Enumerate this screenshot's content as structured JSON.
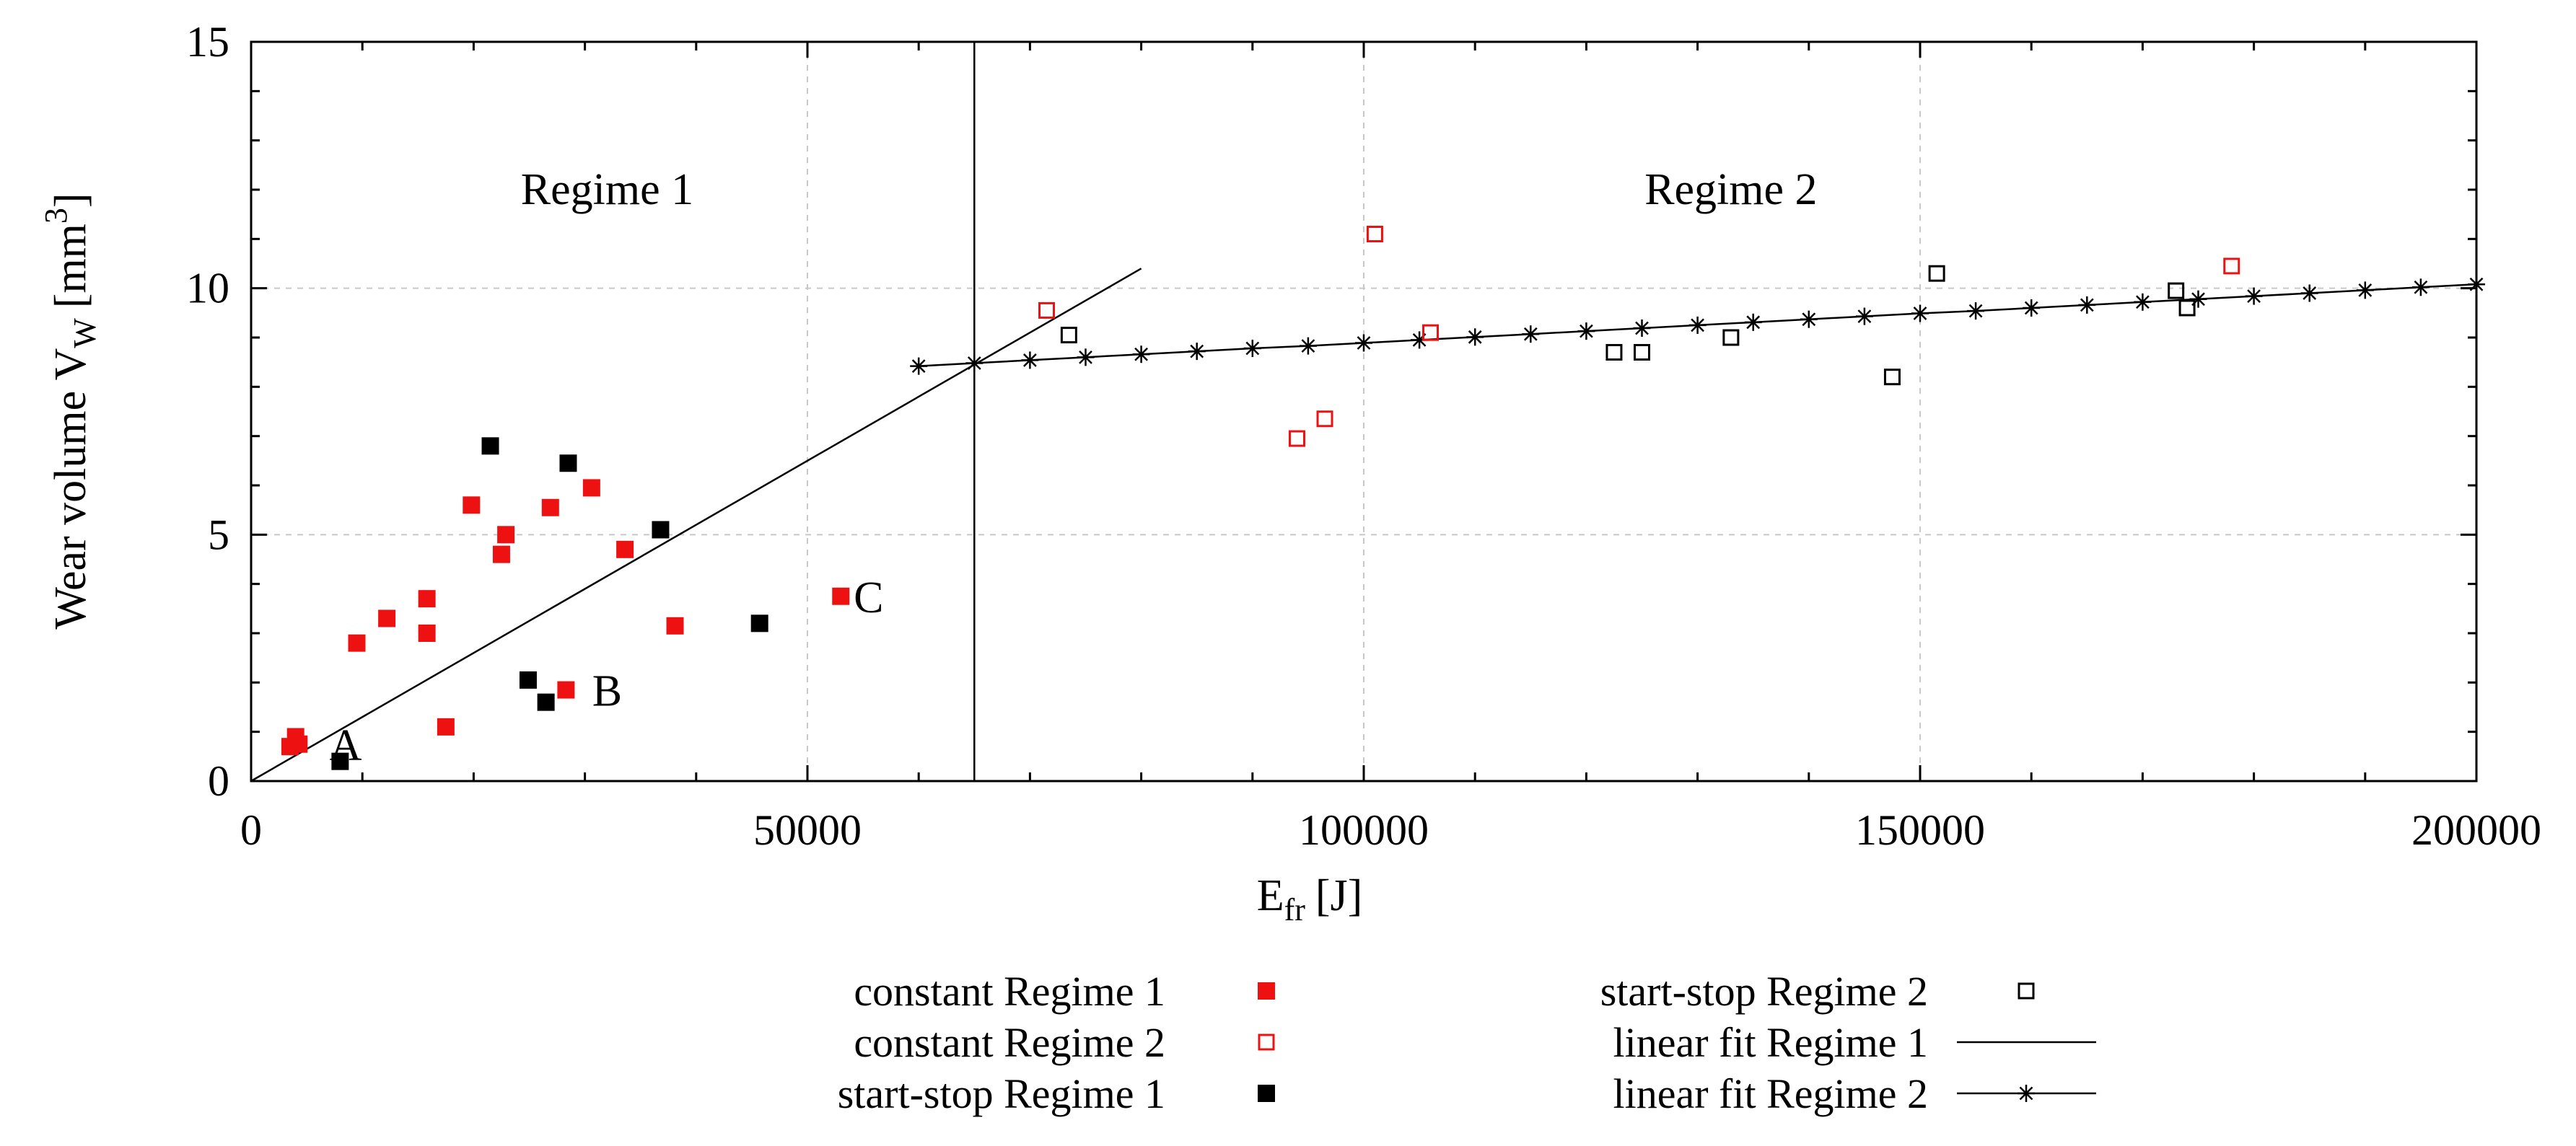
{
  "chart_data": {
    "type": "scatter",
    "title": "",
    "xlabel": {
      "main": "E",
      "sub": "fr",
      "unit": "[J]"
    },
    "ylabel": {
      "main": "Wear volume V",
      "sub": "W",
      "unit_pre": "[mm",
      "unit_sup": "3",
      "unit_post": "]"
    },
    "xlim": [
      0,
      200000
    ],
    "ylim": [
      0,
      15
    ],
    "xticks": [
      0,
      50000,
      100000,
      150000,
      200000
    ],
    "xtick_labels": [
      "0",
      "50000",
      "100000",
      "150000",
      "200000"
    ],
    "yticks": [
      0,
      5,
      10,
      15
    ],
    "ytick_labels": [
      "0",
      "5",
      "10",
      "15"
    ],
    "grid": true,
    "regime_boundary_x": 65000,
    "regime_labels": [
      {
        "text": "Regime 1",
        "x": 32000,
        "y": 12.0
      },
      {
        "text": "Regime 2",
        "x": 133000,
        "y": 12.0
      }
    ],
    "annotations": [
      {
        "text": "A",
        "x": 8500,
        "y": 0.75
      },
      {
        "text": "B",
        "x": 32000,
        "y": 1.85
      },
      {
        "text": "C",
        "x": 55500,
        "y": 3.75
      }
    ],
    "series": [
      {
        "name": "constant Regime 1",
        "marker": "filled-square",
        "color": "#ee1111",
        "x": [
          3500,
          4000,
          4300,
          9500,
          12200,
          15800,
          15800,
          17500,
          19800,
          22500,
          22900,
          26900,
          28300,
          30600,
          33600,
          38100,
          53000
        ],
        "y": [
          0.7,
          0.9,
          0.75,
          2.8,
          3.3,
          3.7,
          3.0,
          1.1,
          5.6,
          4.6,
          5.0,
          5.55,
          1.85,
          5.95,
          4.7,
          3.15,
          3.75
        ]
      },
      {
        "name": "constant Regime 2",
        "marker": "open-square",
        "color": "#ee1111",
        "x": [
          71500,
          94000,
          96500,
          101000,
          106000,
          178000
        ],
        "y": [
          9.55,
          6.95,
          7.35,
          11.1,
          9.1,
          10.45
        ]
      },
      {
        "name": "start-stop Regime 1",
        "marker": "filled-square",
        "color": "#000000",
        "x": [
          8000,
          21500,
          24900,
          26500,
          28500,
          36800,
          45700
        ],
        "y": [
          0.4,
          6.8,
          2.05,
          1.6,
          6.45,
          5.1,
          3.2
        ]
      },
      {
        "name": "start-stop Regime 2",
        "marker": "open-square",
        "color": "#000000",
        "x": [
          73500,
          122500,
          125000,
          133000,
          147500,
          151500,
          173000,
          174000
        ],
        "y": [
          9.05,
          8.7,
          8.7,
          9.0,
          8.2,
          10.3,
          9.95,
          9.6
        ]
      }
    ],
    "fits": [
      {
        "name": "linear fit Regime 1",
        "marker": "none",
        "color": "#000000",
        "x": [
          0,
          80000
        ],
        "y": [
          0.0,
          10.4
        ]
      },
      {
        "name": "linear fit Regime 2",
        "marker": "star",
        "color": "#000000",
        "x": [
          60000,
          65000,
          70000,
          75000,
          80000,
          85000,
          90000,
          95000,
          100000,
          105000,
          110000,
          115000,
          120000,
          125000,
          130000,
          135000,
          140000,
          145000,
          150000,
          155000,
          160000,
          165000,
          170000,
          175000,
          180000,
          185000,
          190000,
          195000,
          200000
        ],
        "y": [
          8.42,
          8.48,
          8.54,
          8.6,
          8.66,
          8.72,
          8.78,
          8.83,
          8.89,
          8.95,
          9.01,
          9.07,
          9.13,
          9.19,
          9.25,
          9.31,
          9.37,
          9.43,
          9.49,
          9.54,
          9.6,
          9.66,
          9.72,
          9.78,
          9.84,
          9.9,
          9.96,
          10.02,
          10.08
        ]
      }
    ],
    "legend": {
      "placement": "bottom",
      "items": [
        {
          "label": "constant Regime 1",
          "marker": "filled-square",
          "color": "#ee1111"
        },
        {
          "label": "constant Regime 2",
          "marker": "open-square",
          "color": "#ee1111"
        },
        {
          "label": "start-stop Regime 1",
          "marker": "filled-square",
          "color": "#000000"
        },
        {
          "label": "start-stop Regime 2",
          "marker": "open-square",
          "color": "#000000"
        },
        {
          "label": "linear fit Regime 1",
          "marker": "none",
          "color": "#000000"
        },
        {
          "label": "linear fit Regime 2",
          "marker": "star",
          "color": "#000000"
        }
      ]
    }
  }
}
